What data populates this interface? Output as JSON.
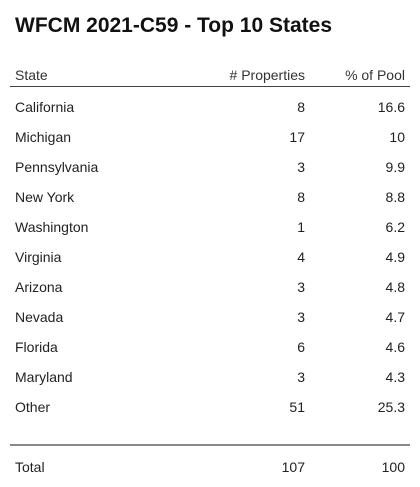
{
  "title": "WFCM 2021-C59 - Top 10 States",
  "columns": {
    "state": "State",
    "properties": "# Properties",
    "pct_pool": "% of Pool"
  },
  "total": {
    "label": "Total",
    "properties": "107",
    "pct_pool": "100"
  },
  "chart_data": {
    "type": "table",
    "title": "WFCM 2021-C59 - Top 10 States",
    "columns": [
      "State",
      "# Properties",
      "% of Pool"
    ],
    "rows": [
      {
        "state": "California",
        "properties": 8,
        "pct": 16.6
      },
      {
        "state": "Michigan",
        "properties": 17,
        "pct": 10
      },
      {
        "state": "Pennsylvania",
        "properties": 3,
        "pct": 9.9
      },
      {
        "state": "New York",
        "properties": 8,
        "pct": 8.8
      },
      {
        "state": "Washington",
        "properties": 1,
        "pct": 6.2
      },
      {
        "state": "Virginia",
        "properties": 4,
        "pct": 4.9
      },
      {
        "state": "Arizona",
        "properties": 3,
        "pct": 4.8
      },
      {
        "state": "Nevada",
        "properties": 3,
        "pct": 4.7
      },
      {
        "state": "Florida",
        "properties": 6,
        "pct": 4.6
      },
      {
        "state": "Maryland",
        "properties": 3,
        "pct": 4.3
      },
      {
        "state": "Other",
        "properties": 51,
        "pct": 25.3
      }
    ],
    "total": {
      "state": "Total",
      "properties": 107,
      "pct": 100
    }
  }
}
